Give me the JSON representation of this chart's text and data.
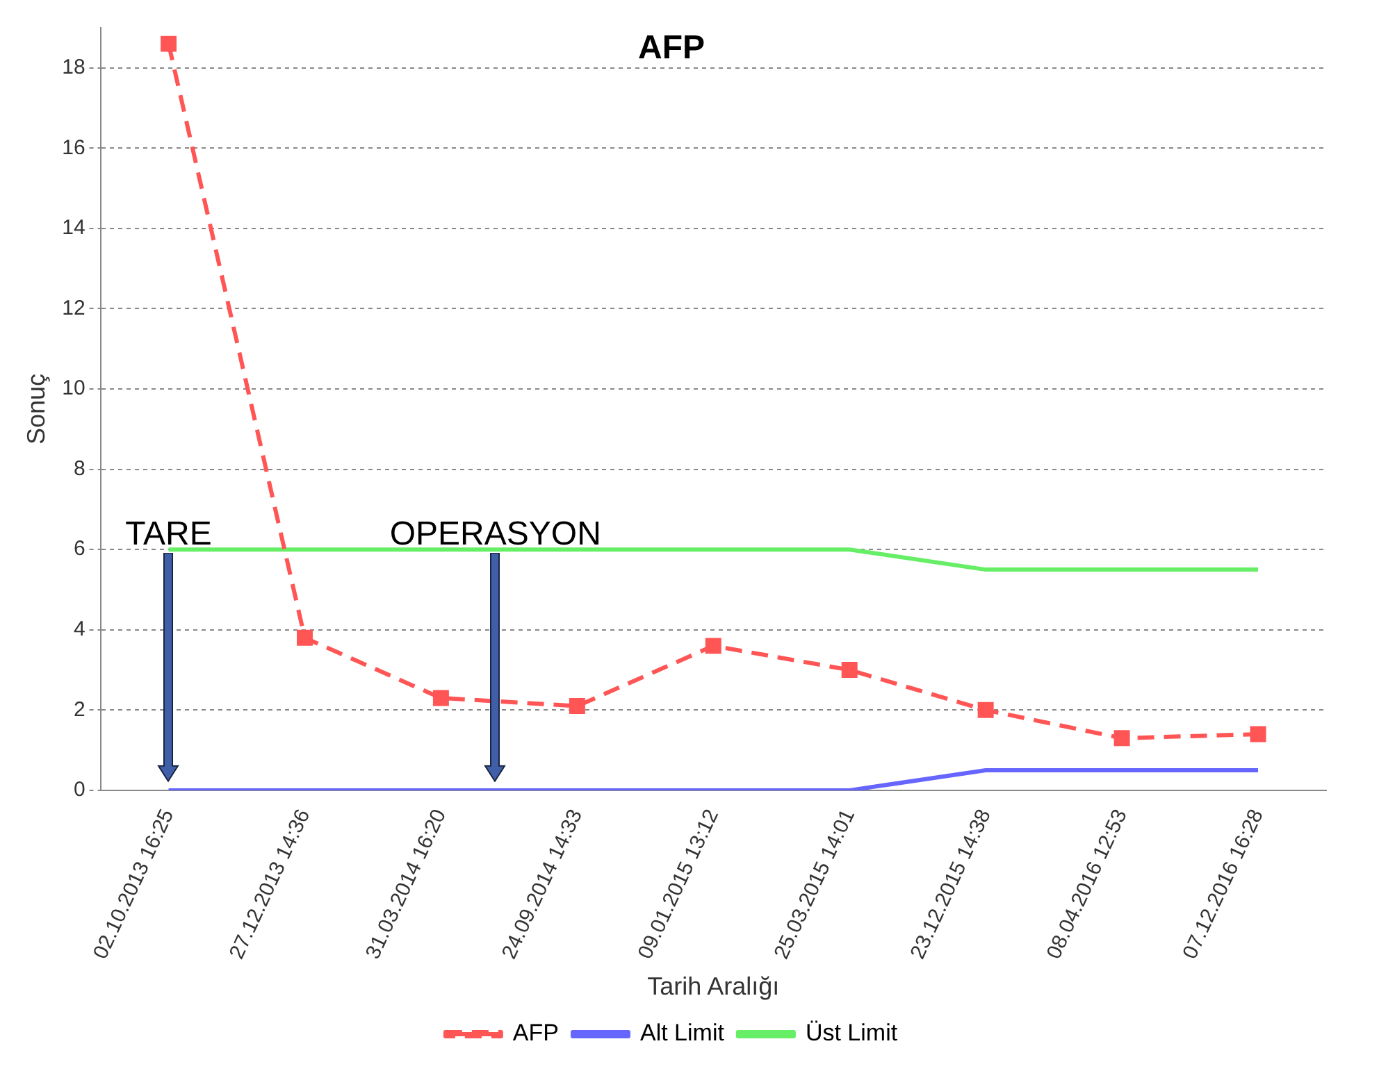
{
  "chart_data": {
    "type": "line",
    "title": "AFP",
    "xlabel": "Tarih Aralığı",
    "ylabel": "Sonuç",
    "categories": [
      "02.10.2013 16:25",
      "27.12.2013 14:36",
      "31.03.2014 16:20",
      "24.09.2014 14:33",
      "09.01.2015 13:12",
      "25.03.2015 14:01",
      "23.12.2015 14:38",
      "08.04.2016 12:53",
      "07.12.2016 16:28"
    ],
    "series": [
      {
        "name": "AFP",
        "color": "#ff5555",
        "marker": "square",
        "line_style": "dashed",
        "values": [
          18.6,
          3.8,
          2.3,
          2.1,
          3.6,
          3.0,
          2.0,
          1.3,
          1.4
        ]
      },
      {
        "name": "Alt Limit",
        "color": "#6666ff",
        "marker": "none",
        "line_style": "solid",
        "values": [
          0,
          0,
          0,
          0,
          0,
          0,
          0.5,
          0.5,
          0.5
        ]
      },
      {
        "name": "Üst Limit",
        "color": "#66ee66",
        "marker": "none",
        "line_style": "solid",
        "values": [
          6,
          6,
          6,
          6,
          6,
          6,
          5.5,
          5.5,
          5.5
        ]
      }
    ],
    "ylim": [
      0,
      19
    ],
    "yticks": [
      0,
      2,
      4,
      6,
      8,
      10,
      12,
      14,
      16,
      18
    ],
    "grid": "y",
    "legend": "bottom",
    "annotations": [
      "TARE",
      "OPERASYON"
    ]
  }
}
